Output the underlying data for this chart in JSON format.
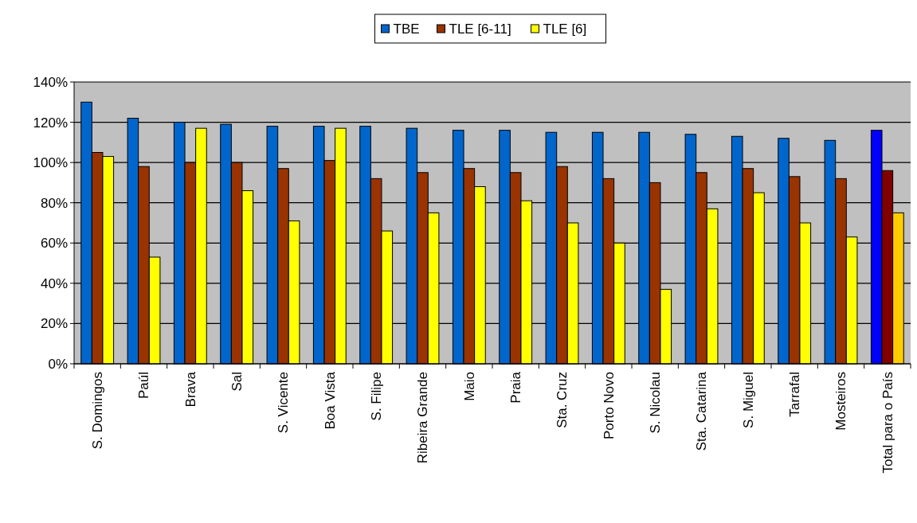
{
  "chart_data": {
    "type": "bar",
    "categories": [
      "S. Domingos",
      "Paúl",
      "Brava",
      "Sal",
      "S. Vicente",
      "Boa Vista",
      "S. Filipe",
      "Ribeira Grande",
      "Maio",
      "Praia",
      "Sta. Cruz",
      "Porto Novo",
      "S. Nicolau",
      "Sta. Catarina",
      "S. Miguel",
      "Tarrafal",
      "Mosteiros",
      "Total para o País"
    ],
    "series": [
      {
        "name": "TBE",
        "color": "#0066cc",
        "colors": [
          "#0066cc",
          "#0066cc",
          "#0066cc",
          "#0066cc",
          "#0066cc",
          "#0066cc",
          "#0066cc",
          "#0066cc",
          "#0066cc",
          "#0066cc",
          "#0066cc",
          "#0066cc",
          "#0066cc",
          "#0066cc",
          "#0066cc",
          "#0066cc",
          "#0066cc",
          "#0000ff"
        ],
        "values": [
          130,
          122,
          120,
          119,
          118,
          118,
          118,
          117,
          116,
          116,
          115,
          115,
          115,
          114,
          113,
          112,
          111,
          116
        ]
      },
      {
        "name": "TLE [6-11]",
        "color": "#993300",
        "colors": [
          "#993300",
          "#993300",
          "#993300",
          "#993300",
          "#993300",
          "#993300",
          "#993300",
          "#993300",
          "#993300",
          "#993300",
          "#993300",
          "#993300",
          "#993300",
          "#993300",
          "#993300",
          "#993300",
          "#993300",
          "#800000"
        ],
        "values": [
          105,
          98,
          100,
          100,
          97,
          101,
          92,
          95,
          97,
          95,
          98,
          92,
          90,
          95,
          97,
          93,
          92,
          96
        ]
      },
      {
        "name": "TLE [6]",
        "color": "#ffff00",
        "colors": [
          "#ffff00",
          "#ffff00",
          "#ffff00",
          "#ffff00",
          "#ffff00",
          "#ffff00",
          "#ffff00",
          "#ffff00",
          "#ffff00",
          "#ffff00",
          "#ffff00",
          "#ffff00",
          "#ffff00",
          "#ffff00",
          "#ffff00",
          "#ffff00",
          "#ffff00",
          "#ffcc00"
        ],
        "values": [
          103,
          53,
          117,
          86,
          71,
          117,
          66,
          75,
          88,
          81,
          70,
          60,
          37,
          77,
          85,
          70,
          63,
          75
        ]
      }
    ],
    "ylim": [
      0,
      140
    ],
    "yticks": [
      {
        "value": 0,
        "label": "0%"
      },
      {
        "value": 20,
        "label": "20%"
      },
      {
        "value": 40,
        "label": "40%"
      },
      {
        "value": 60,
        "label": "60%"
      },
      {
        "value": 80,
        "label": "80%"
      },
      {
        "value": 100,
        "label": "100%"
      },
      {
        "value": 120,
        "label": "120%"
      },
      {
        "value": 140,
        "label": "140%"
      }
    ],
    "grid": "y",
    "legend": "top"
  }
}
